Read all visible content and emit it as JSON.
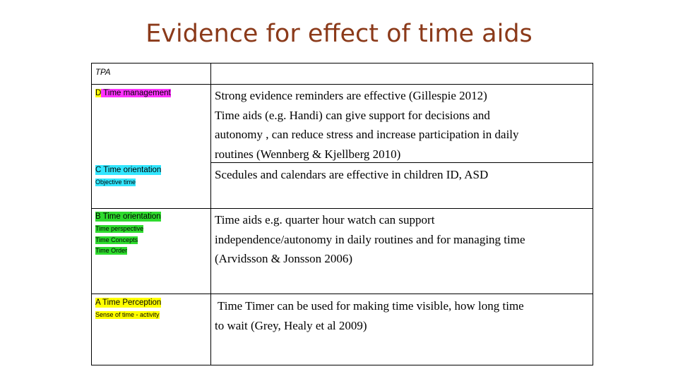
{
  "title": "Evidence for effect of time aids",
  "colors": {
    "title": "#8b3a1a",
    "magenta": "#ff33ff",
    "cyan": "#33e6ff",
    "green": "#2edb2e",
    "yellow": "#ffff00"
  },
  "rows": {
    "tpa": {
      "label": "TPA"
    },
    "d": {
      "label_letter": "D",
      "label_rest": " Time management"
    },
    "c": {
      "label": "C Time orientation",
      "sub": "Objective time"
    },
    "b": {
      "label": "B Time orientation",
      "subs": [
        "Time perspective",
        "Time  Concepts",
        "Time Order"
      ]
    },
    "a": {
      "label": "A Time Perception",
      "sub": "Sense of time - activity"
    }
  },
  "evidence": {
    "d_lines": [
      "Strong evidence reminders are effective (Gillespie 2012)",
      "Time aids (e.g. Handi) can give support for decisions and",
      "autonomy , can reduce stress and increase participation in daily",
      "routines (Wennberg & Kjellberg 2010)"
    ],
    "c_line": "Scedules and calendars are effective in children ID, ASD",
    "b_lines": [
      "Time aids e.g. quarter hour watch can support",
      "independence/autonomy in daily routines and for managing time",
      "(Arvidsson & Jonsson 2006)"
    ],
    "a_lines": [
      " Time Timer can be used for making time visible, how long time",
      "to wait (Grey, Healy et al 2009)"
    ]
  }
}
